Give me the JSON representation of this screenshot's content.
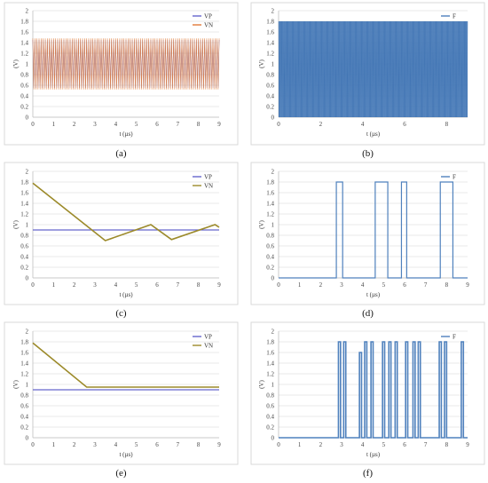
{
  "chart_data": [
    {
      "panel": "a",
      "caption": "(a)",
      "type": "line",
      "xlabel": "t (µs)",
      "ylabel": "(V)",
      "xlim": [
        0,
        9
      ],
      "ylim": [
        0,
        2
      ],
      "xticks": [
        "0",
        "1",
        "2",
        "3",
        "4",
        "5",
        "6",
        "7",
        "8",
        "9"
      ],
      "yticks": [
        "0",
        "0.2",
        "0.4",
        "0.6",
        "0.8",
        "1",
        "1.2",
        "1.4",
        "1.6",
        "1.8",
        "2"
      ],
      "legend_position": "top-right",
      "series": [
        {
          "name": "VP",
          "color": "#6666cc",
          "kind": "oscillation",
          "t_end": 9,
          "low": 0.55,
          "high": 1.45,
          "period": 0.1
        },
        {
          "name": "VN",
          "color": "#e07b39",
          "kind": "oscillation",
          "t_end": 9,
          "low": 0.52,
          "high": 1.48,
          "period": 0.1
        }
      ]
    },
    {
      "panel": "b",
      "caption": "(b)",
      "type": "line",
      "xlabel": "t (µs)",
      "ylabel": "(V)",
      "xlim": [
        0,
        9
      ],
      "ylim": [
        0,
        2
      ],
      "xticks": [
        "0",
        "2",
        "4",
        "6",
        "8"
      ],
      "ytick_values": [
        0,
        0.2,
        0.4,
        0.6,
        0.8,
        1,
        1.2,
        1.4,
        1.6,
        1.8,
        2
      ],
      "yticks": [
        "0",
        "0.2",
        "0.4",
        "0.6",
        "0.8",
        "1",
        "1.2",
        "1.4",
        "1.6",
        "1.8",
        "2"
      ],
      "xtick_values": [
        0,
        2,
        4,
        6,
        8
      ],
      "legend_position": "top-right",
      "series": [
        {
          "name": "F",
          "color": "#4f81bd",
          "kind": "fill",
          "t_end": 9,
          "low": 0.0,
          "high": 1.8
        }
      ]
    },
    {
      "panel": "c",
      "caption": "(c)",
      "type": "line",
      "xlabel": "t (µs)",
      "ylabel": "(V)",
      "xlim": [
        0,
        9
      ],
      "ylim": [
        0,
        2
      ],
      "xticks": [
        "0",
        "1",
        "2",
        "3",
        "4",
        "5",
        "6",
        "7",
        "8",
        "9"
      ],
      "yticks": [
        "0",
        "0.2",
        "0.4",
        "0.6",
        "0.8",
        "1",
        "1.2",
        "1.4",
        "1.6",
        "1.8",
        "2"
      ],
      "legend_position": "top-right",
      "series": [
        {
          "name": "VP",
          "color": "#6666cc",
          "kind": "line",
          "x": [
            0,
            9
          ],
          "y": [
            0.9,
            0.9
          ]
        },
        {
          "name": "VN",
          "color": "#9c8a2a",
          "kind": "line",
          "x": [
            0,
            3.5,
            5.7,
            6.7,
            8.8,
            9
          ],
          "y": [
            1.78,
            0.7,
            1.0,
            0.72,
            1.0,
            0.95
          ]
        }
      ]
    },
    {
      "panel": "d",
      "caption": "(d)",
      "type": "line",
      "xlabel": "t (µs)",
      "ylabel": "(V)",
      "xlim": [
        0,
        9
      ],
      "ylim": [
        0,
        2
      ],
      "xticks": [
        "0",
        "1",
        "2",
        "3",
        "4",
        "5",
        "6",
        "7",
        "8",
        "9"
      ],
      "yticks": [
        "0",
        "0.2",
        "0.4",
        "0.6",
        "0.8",
        "1",
        "1.2",
        "1.4",
        "1.6",
        "1.8",
        "2"
      ],
      "legend_position": "top-right",
      "series": [
        {
          "name": "F",
          "color": "#4f81bd",
          "kind": "line",
          "x": [
            0,
            2.75,
            2.75,
            3.05,
            3.05,
            4.6,
            4.6,
            5.2,
            5.2,
            5.85,
            5.85,
            6.1,
            6.1,
            7.7,
            7.7,
            8.3,
            8.3,
            9
          ],
          "y": [
            0,
            0,
            1.8,
            1.8,
            0,
            0,
            1.8,
            1.8,
            0,
            0,
            1.8,
            1.8,
            0,
            0,
            1.8,
            1.8,
            0,
            0
          ]
        }
      ]
    },
    {
      "panel": "e",
      "caption": "(e)",
      "type": "line",
      "xlabel": "t (µs)",
      "ylabel": "(V)",
      "xlim": [
        0,
        9
      ],
      "ylim": [
        0,
        2
      ],
      "xticks": [
        "0",
        "1",
        "2",
        "3",
        "4",
        "5",
        "6",
        "7",
        "8",
        "9"
      ],
      "yticks": [
        "0",
        "0.2",
        "0.4",
        "0.6",
        "0.8",
        "1",
        "1.2",
        "1.4",
        "1.6",
        "1.8",
        "2"
      ],
      "legend_position": "top-right",
      "series": [
        {
          "name": "VP",
          "color": "#6666cc",
          "kind": "line",
          "x": [
            0,
            9
          ],
          "y": [
            0.9,
            0.9
          ]
        },
        {
          "name": "VN",
          "color": "#9c8a2a",
          "kind": "line",
          "x": [
            0,
            2.6,
            9
          ],
          "y": [
            1.78,
            0.95,
            0.95
          ]
        }
      ]
    },
    {
      "panel": "f",
      "caption": "(f)",
      "type": "line",
      "xlabel": "t (µs)",
      "ylabel": "(V)",
      "xlim": [
        0,
        9
      ],
      "ylim": [
        0,
        2
      ],
      "xticks": [
        "0",
        "1",
        "2",
        "3",
        "4",
        "5",
        "6",
        "7",
        "8",
        "9"
      ],
      "yticks": [
        "0",
        "0.2",
        "0.4",
        "0.6",
        "0.8",
        "1",
        "1.2",
        "1.4",
        "1.6",
        "1.8",
        "2"
      ],
      "legend_position": "top-right",
      "series": [
        {
          "name": "F",
          "color": "#4f81bd",
          "kind": "pulses",
          "pulses": [
            [
              2.85,
              2.95,
              1.8
            ],
            [
              3.1,
              3.2,
              1.8
            ],
            [
              3.85,
              3.95,
              1.6
            ],
            [
              4.1,
              4.2,
              1.8
            ],
            [
              4.4,
              4.5,
              1.8
            ],
            [
              4.95,
              5.05,
              1.8
            ],
            [
              5.25,
              5.35,
              1.8
            ],
            [
              5.55,
              5.65,
              1.8
            ],
            [
              6.05,
              6.15,
              1.8
            ],
            [
              6.4,
              6.5,
              1.8
            ],
            [
              6.65,
              6.75,
              1.8
            ],
            [
              7.65,
              7.75,
              1.8
            ],
            [
              7.9,
              8.0,
              1.8
            ],
            [
              8.7,
              8.8,
              1.8
            ]
          ]
        }
      ]
    }
  ]
}
